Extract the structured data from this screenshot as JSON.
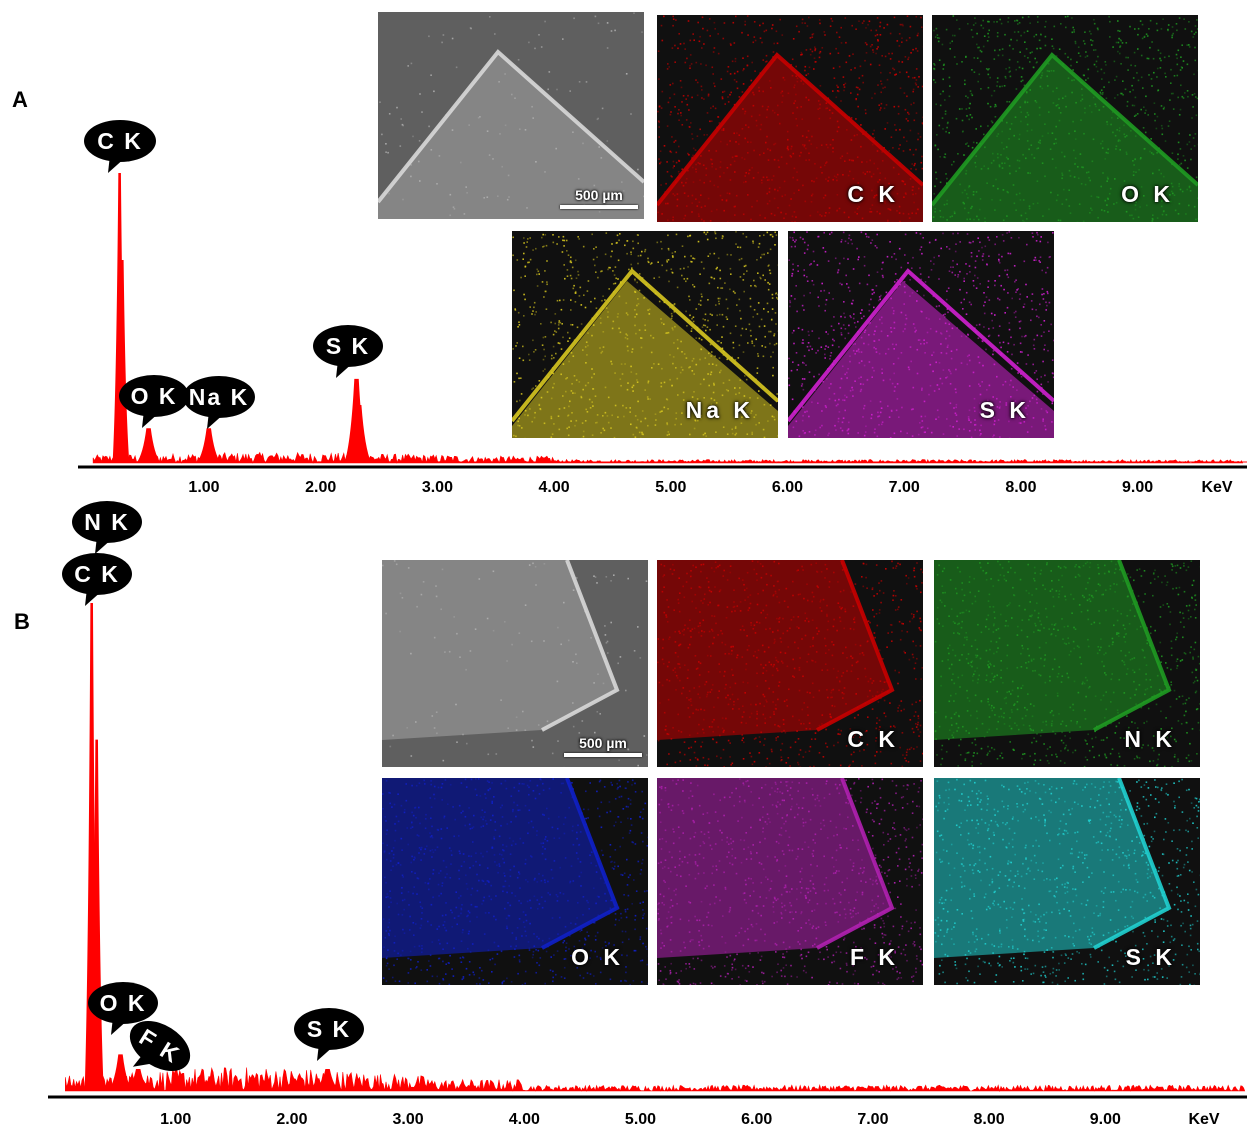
{
  "colors": {
    "spectrum": "#ff0000",
    "axis": "#000000",
    "bubble_fill": "#000000",
    "bubble_text": "#ffffff",
    "map_C": "#c80000",
    "map_O_panelA": "#1f9a22",
    "map_N": "#1f9a22",
    "map_Na": "#d8c820",
    "map_S_panelA": "#d020d0",
    "map_O_panelB": "#1020c8",
    "map_F": "#b020b0",
    "map_S_panelB": "#20d0d0",
    "sem": "#7a7a7a"
  },
  "panels": [
    {
      "letter": "A",
      "unit_label": "KeV",
      "peak_labels": [
        "C K",
        "O K",
        "Na K",
        "S K"
      ],
      "maps": [
        {
          "kind": "sem",
          "label": "",
          "scalebar": "500 µm"
        },
        {
          "kind": "element",
          "label": "C K",
          "color_key": "map_C"
        },
        {
          "kind": "element",
          "label": "O K",
          "color_key": "map_O_panelA"
        },
        {
          "kind": "element",
          "label": "Na K",
          "color_key": "map_Na"
        },
        {
          "kind": "element",
          "label": "S K",
          "color_key": "map_S_panelA"
        }
      ]
    },
    {
      "letter": "B",
      "unit_label": "KeV",
      "peak_labels": [
        "N K",
        "C K",
        "O K",
        "F K",
        "S K"
      ],
      "maps": [
        {
          "kind": "sem",
          "label": "",
          "scalebar": "500 µm"
        },
        {
          "kind": "element",
          "label": "C K",
          "color_key": "map_C"
        },
        {
          "kind": "element",
          "label": "N K",
          "color_key": "map_N"
        },
        {
          "kind": "element",
          "label": "O K",
          "color_key": "map_O_panelB"
        },
        {
          "kind": "element",
          "label": "F K",
          "color_key": "map_F"
        },
        {
          "kind": "element",
          "label": "S K",
          "color_key": "map_S_panelB"
        }
      ]
    }
  ],
  "chart_data": [
    {
      "type": "line",
      "panel": "A",
      "title": "",
      "xlabel": "KeV",
      "ylabel": "",
      "x_ticks": [
        "1.00",
        "2.00",
        "3.00",
        "4.00",
        "5.00",
        "6.00",
        "7.00",
        "8.00",
        "9.00"
      ],
      "xlim": [
        0,
        10
      ],
      "ylim": [
        0,
        100
      ],
      "grid": false,
      "peaks": [
        {
          "x": 0.277,
          "y": 100,
          "label": "C K"
        },
        {
          "x": 0.3,
          "y": 70,
          "label": ""
        },
        {
          "x": 0.525,
          "y": 12,
          "label": "O K"
        },
        {
          "x": 1.041,
          "y": 12,
          "label": "Na K"
        },
        {
          "x": 2.307,
          "y": 29,
          "label": "S K"
        },
        {
          "x": 2.33,
          "y": 20,
          "label": ""
        }
      ],
      "background_level": 1.5
    },
    {
      "type": "line",
      "panel": "B",
      "title": "",
      "xlabel": "KeV",
      "ylabel": "",
      "x_ticks": [
        "1.00",
        "2.00",
        "3.00",
        "4.00",
        "5.00",
        "6.00",
        "7.00",
        "8.00",
        "9.00"
      ],
      "xlim": [
        0,
        10.3
      ],
      "ylim": [
        0,
        100
      ],
      "grid": false,
      "peaks": [
        {
          "x": 0.277,
          "y": 100,
          "label": "C K"
        },
        {
          "x": 0.32,
          "y": 72,
          "label": "N K"
        },
        {
          "x": 0.525,
          "y": 7.5,
          "label": "O K"
        },
        {
          "x": 0.677,
          "y": 4.5,
          "label": "F K"
        },
        {
          "x": 2.307,
          "y": 4.5,
          "label": "S K"
        }
      ],
      "background_level": 1.5
    }
  ]
}
